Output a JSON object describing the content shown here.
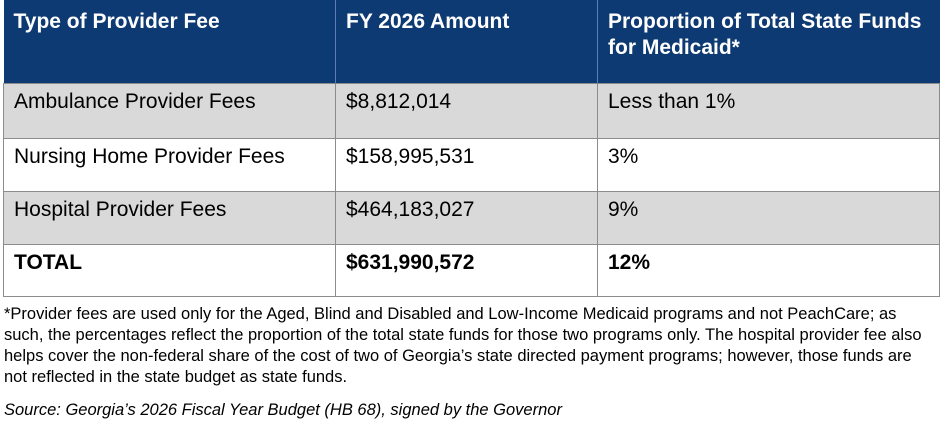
{
  "table": {
    "headers": [
      "Type of Provider Fee",
      "FY 2026 Amount",
      "Proportion of Total State Funds for Medicaid*"
    ],
    "rows": [
      [
        "Ambulance Provider Fees",
        "$8,812,014",
        "Less than 1%"
      ],
      [
        "Nursing Home Provider Fees",
        "$158,995,531",
        "3%"
      ],
      [
        "Hospital Provider Fees",
        "$464,183,027",
        "9%"
      ],
      [
        "TOTAL",
        "$631,990,572",
        "12%"
      ]
    ]
  },
  "footnote": "*Provider fees are used only for the Aged, Blind and Disabled and Low-Income Medicaid programs and not PeachCare; as such, the percentages reflect the proportion of the total state funds for those two programs only. The hospital provider fee also helps cover the non-federal share of the cost of two of Georgia’s state directed payment programs; however, those funds are not reflected in the state budget as state funds.",
  "source": "Source: Georgia’s 2026 Fiscal Year Budget (HB 68), signed by the Governor",
  "colors": {
    "header_bg": "#0e3a73",
    "header_text": "#ffffff",
    "shaded_row": "#d9d9d9",
    "border": "#8c8c8c"
  }
}
